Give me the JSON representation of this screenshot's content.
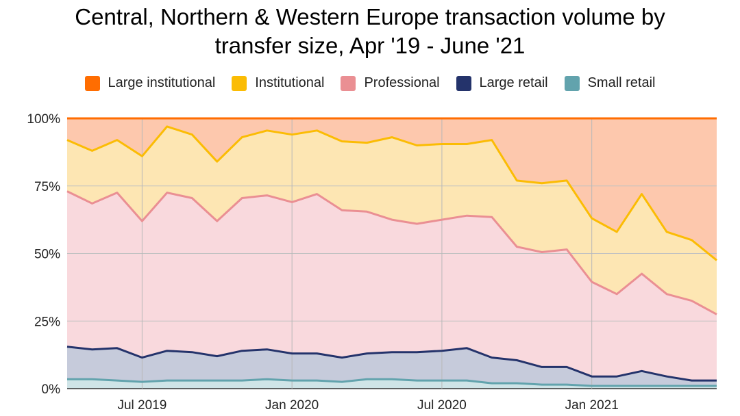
{
  "chart_data": {
    "type": "area",
    "stacked": "percent",
    "title_lines": [
      "Central, Northern & Western Europe transaction volume by",
      "transfer size, Apr '19 - June '21"
    ],
    "x_labels": [
      "Jul 2019",
      "Jan 2020",
      "Jul 2020",
      "Jan 2021"
    ],
    "x_label_index": [
      3,
      9,
      15,
      21
    ],
    "x_count": 27,
    "y_ticks": [
      "0%",
      "25%",
      "50%",
      "75%",
      "100%"
    ],
    "ylim": [
      0,
      100
    ],
    "legend_position": "top",
    "series": [
      {
        "name": "Large institutional",
        "color": "#ff6d01",
        "fill": "#fdc8ad",
        "cumulative": [
          100,
          100,
          100,
          100,
          100,
          100,
          100,
          100,
          100,
          100,
          100,
          100,
          100,
          100,
          100,
          100,
          100,
          100,
          100,
          100,
          100,
          100,
          100,
          100,
          100,
          100,
          100
        ]
      },
      {
        "name": "Institutional",
        "color": "#fbbc04",
        "fill": "#fde6b3",
        "cumulative": [
          92,
          88,
          92,
          86,
          97,
          94,
          84,
          93,
          95.5,
          94,
          95.5,
          91.5,
          91,
          93,
          90,
          90.5,
          90.5,
          92,
          77,
          76,
          77,
          63,
          58,
          72,
          58,
          55,
          47.5
        ]
      },
      {
        "name": "Professional",
        "color": "#ea8f93",
        "fill": "#f9d9dd",
        "cumulative": [
          73,
          68.5,
          72.5,
          62,
          72.5,
          70.5,
          62,
          70.5,
          71.5,
          69,
          72,
          66,
          65.5,
          62.5,
          61,
          62.5,
          64,
          63.5,
          52.5,
          50.5,
          51.5,
          39.5,
          35,
          42.5,
          35,
          32.5,
          27.5
        ]
      },
      {
        "name": "Large retail",
        "color": "#24336b",
        "fill": "#c6cbdb",
        "cumulative": [
          15.5,
          14.5,
          15,
          11.5,
          14,
          13.5,
          12,
          14,
          14.5,
          13,
          13,
          11.5,
          13,
          13.5,
          13.5,
          14,
          15,
          11.5,
          10.5,
          8,
          8,
          4.5,
          4.5,
          6.5,
          4.5,
          3,
          3
        ]
      },
      {
        "name": "Small retail",
        "color": "#62a3ad",
        "fill": "#cfe4e7",
        "cumulative": [
          3.5,
          3.5,
          3,
          2.5,
          3,
          3,
          3,
          3,
          3.5,
          3,
          3,
          2.5,
          3.5,
          3.5,
          3,
          3,
          3,
          2,
          2,
          1.5,
          1.5,
          1,
          1,
          1,
          1,
          1,
          1
        ]
      }
    ]
  }
}
